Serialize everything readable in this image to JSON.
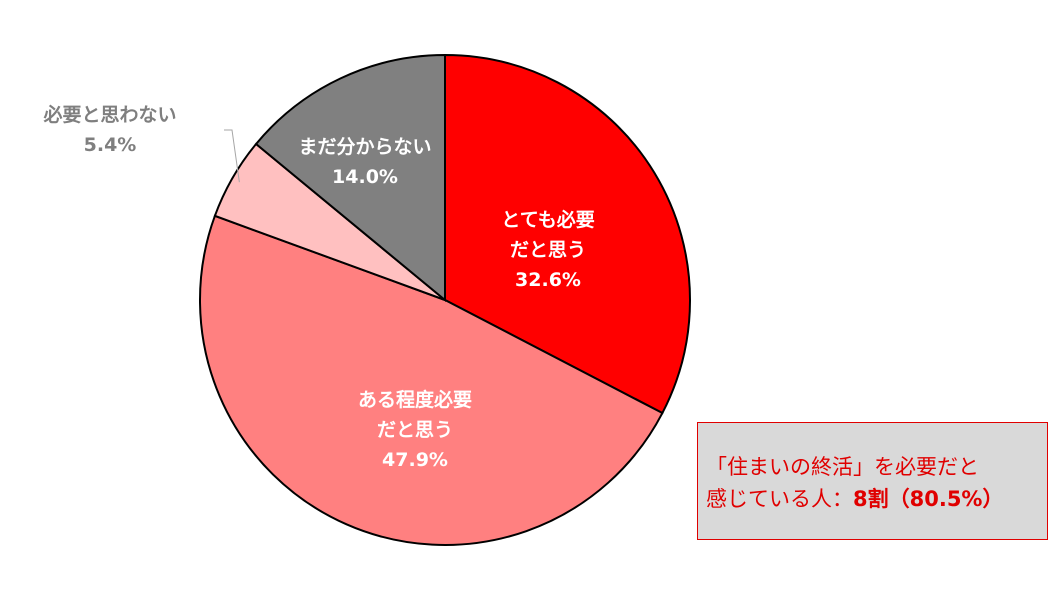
{
  "chart_data": {
    "type": "pie",
    "categories": [
      "とても必要\nだと思う",
      "ある程度必要\nだと思う",
      "必要と思わない",
      "まだ分からない"
    ],
    "values": [
      32.6,
      47.9,
      5.4,
      14.0
    ],
    "value_labels": [
      "32.6%",
      "47.9%",
      "5.4%",
      "14.0%"
    ],
    "colors": [
      "#ff0000",
      "#ff8080",
      "#ffc0c0",
      "#808080"
    ],
    "annotation": {
      "text": "「住まいの終活」を必要だと\n感じている人：",
      "emphasis": "8割（80.5%）"
    }
  }
}
